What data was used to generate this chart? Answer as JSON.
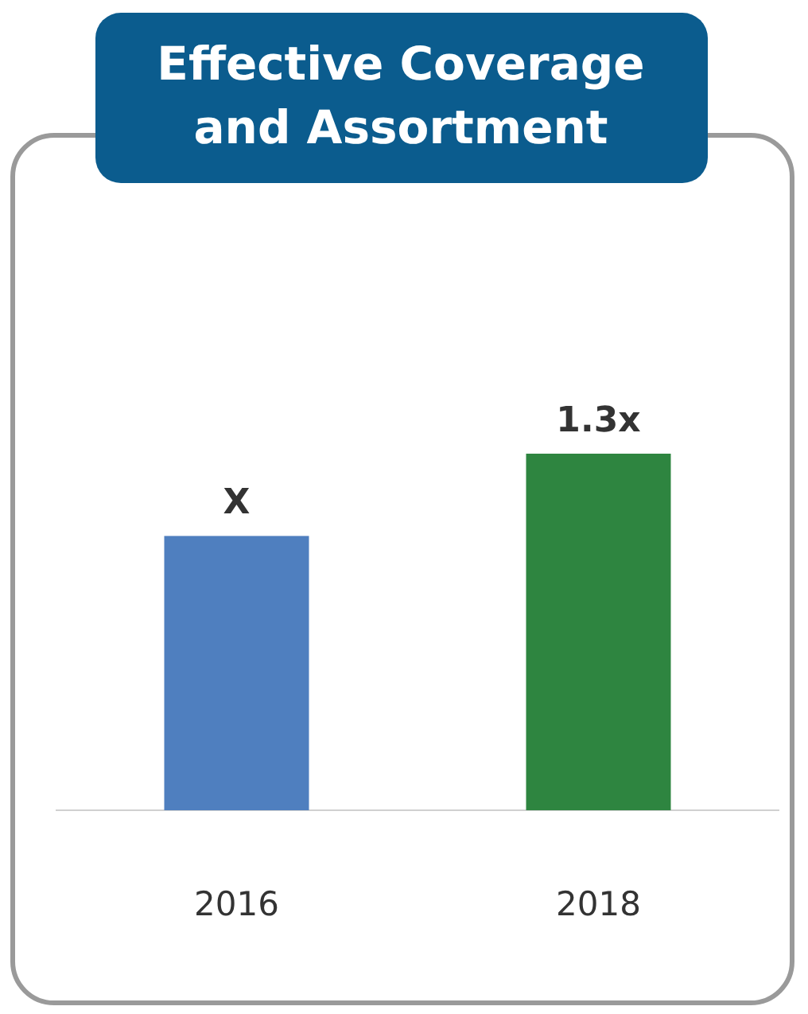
{
  "chart_data": {
    "type": "bar",
    "title": "Effective Coverage and Assortment",
    "categories": [
      "2016",
      "2018"
    ],
    "values": [
      1,
      1.3
    ],
    "colors": [
      "#4f7fbf",
      "#2e8540"
    ],
    "value_labels": [
      "X",
      "1.3x"
    ]
  }
}
